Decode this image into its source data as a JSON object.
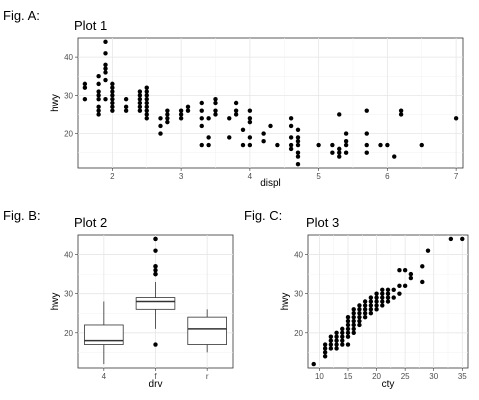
{
  "chart_data": [
    {
      "id": "A",
      "fig_label": "Fig. A:",
      "type": "scatter",
      "title": "Plot 1",
      "xlabel": "displ",
      "ylabel": "hwy",
      "xlim": [
        1.5,
        7.1
      ],
      "ylim": [
        11,
        45
      ],
      "xticks": [
        2,
        3,
        4,
        5,
        6,
        7
      ],
      "yticks": [
        20,
        30,
        40
      ],
      "grid": true,
      "points": [
        [
          1.6,
          33
        ],
        [
          1.6,
          32
        ],
        [
          1.6,
          29
        ],
        [
          1.8,
          31
        ],
        [
          1.8,
          29
        ],
        [
          1.8,
          27
        ],
        [
          1.8,
          26
        ],
        [
          1.8,
          25
        ],
        [
          1.8,
          30
        ],
        [
          1.8,
          35
        ],
        [
          1.8,
          33
        ],
        [
          1.9,
          44
        ],
        [
          1.9,
          41
        ],
        [
          1.9,
          29
        ],
        [
          1.9,
          34
        ],
        [
          1.9,
          37
        ],
        [
          1.9,
          38
        ],
        [
          1.9,
          36
        ],
        [
          2.0,
          31
        ],
        [
          2.0,
          30
        ],
        [
          2.0,
          29
        ],
        [
          2.0,
          28
        ],
        [
          2.0,
          27
        ],
        [
          2.0,
          26
        ],
        [
          2.0,
          32
        ],
        [
          2.0,
          33
        ],
        [
          2.2,
          26
        ],
        [
          2.2,
          27
        ],
        [
          2.2,
          29
        ],
        [
          2.4,
          27
        ],
        [
          2.4,
          30
        ],
        [
          2.4,
          31
        ],
        [
          2.4,
          26
        ],
        [
          2.4,
          29
        ],
        [
          2.4,
          28
        ],
        [
          2.5,
          29
        ],
        [
          2.5,
          28
        ],
        [
          2.5,
          27
        ],
        [
          2.5,
          26
        ],
        [
          2.5,
          25
        ],
        [
          2.5,
          24
        ],
        [
          2.5,
          30
        ],
        [
          2.5,
          31
        ],
        [
          2.5,
          32
        ],
        [
          2.7,
          20
        ],
        [
          2.7,
          22
        ],
        [
          2.7,
          24
        ],
        [
          2.8,
          26
        ],
        [
          2.8,
          25
        ],
        [
          2.8,
          24
        ],
        [
          2.8,
          23
        ],
        [
          3.0,
          26
        ],
        [
          3.0,
          25
        ],
        [
          3.0,
          24
        ],
        [
          3.1,
          26
        ],
        [
          3.1,
          27
        ],
        [
          3.3,
          28
        ],
        [
          3.3,
          26
        ],
        [
          3.3,
          24
        ],
        [
          3.3,
          22
        ],
        [
          3.3,
          17
        ],
        [
          3.4,
          24
        ],
        [
          3.4,
          19
        ],
        [
          3.4,
          17
        ],
        [
          3.5,
          29
        ],
        [
          3.5,
          26
        ],
        [
          3.5,
          25
        ],
        [
          3.5,
          28
        ],
        [
          3.7,
          19
        ],
        [
          3.7,
          24
        ],
        [
          3.8,
          28
        ],
        [
          3.8,
          26
        ],
        [
          3.8,
          25
        ],
        [
          3.9,
          21
        ],
        [
          3.9,
          17
        ],
        [
          4.0,
          26
        ],
        [
          4.0,
          23
        ],
        [
          4.0,
          19
        ],
        [
          4.0,
          17
        ],
        [
          4.0,
          24
        ],
        [
          4.2,
          18
        ],
        [
          4.2,
          20
        ],
        [
          4.3,
          22
        ],
        [
          4.4,
          17
        ],
        [
          4.6,
          24
        ],
        [
          4.6,
          22
        ],
        [
          4.6,
          19
        ],
        [
          4.6,
          17
        ],
        [
          4.6,
          16
        ],
        [
          4.7,
          14
        ],
        [
          4.7,
          15
        ],
        [
          4.7,
          17
        ],
        [
          4.7,
          19
        ],
        [
          4.7,
          12
        ],
        [
          4.7,
          18
        ],
        [
          4.7,
          21
        ],
        [
          5.0,
          17
        ],
        [
          5.2,
          17
        ],
        [
          5.2,
          15
        ],
        [
          5.3,
          25
        ],
        [
          5.3,
          16
        ],
        [
          5.3,
          15
        ],
        [
          5.3,
          14
        ],
        [
          5.4,
          18
        ],
        [
          5.4,
          17
        ],
        [
          5.4,
          15
        ],
        [
          5.4,
          20
        ],
        [
          5.7,
          26
        ],
        [
          5.7,
          20
        ],
        [
          5.7,
          17
        ],
        [
          5.7,
          15
        ],
        [
          5.9,
          17
        ],
        [
          6.0,
          17
        ],
        [
          6.1,
          14
        ],
        [
          6.2,
          26
        ],
        [
          6.2,
          25
        ],
        [
          6.5,
          17
        ],
        [
          7.0,
          24
        ]
      ]
    },
    {
      "id": "B",
      "fig_label": "Fig. B:",
      "type": "box",
      "title": "Plot 2",
      "xlabel": "drv",
      "ylabel": "hwy",
      "ylim": [
        11,
        45
      ],
      "yticks": [
        20,
        30,
        40
      ],
      "grid": true,
      "categories": [
        "4",
        "f",
        "r"
      ],
      "boxes": [
        {
          "category": "4",
          "min": 12,
          "q1": 17,
          "median": 18,
          "q3": 22,
          "max": 28,
          "outliers": []
        },
        {
          "category": "f",
          "min": 21,
          "q1": 26,
          "median": 28,
          "q3": 29,
          "max": 33,
          "outliers": [
            17,
            35,
            35,
            36,
            37,
            37,
            41,
            44,
            44
          ]
        },
        {
          "category": "r",
          "min": 15,
          "q1": 17,
          "median": 21,
          "q3": 24,
          "max": 26,
          "outliers": []
        }
      ]
    },
    {
      "id": "C",
      "fig_label": "Fig. C:",
      "type": "scatter",
      "title": "Plot 3",
      "xlabel": "cty",
      "ylabel": "hwy",
      "xlim": [
        8,
        36
      ],
      "ylim": [
        11,
        45
      ],
      "xticks": [
        10,
        15,
        20,
        25,
        30,
        35
      ],
      "yticks": [
        20,
        30,
        40
      ],
      "grid": true,
      "points": [
        [
          9,
          12
        ],
        [
          11,
          14
        ],
        [
          11,
          15
        ],
        [
          11,
          16
        ],
        [
          11,
          17
        ],
        [
          12,
          16
        ],
        [
          12,
          17
        ],
        [
          12,
          18
        ],
        [
          12,
          19
        ],
        [
          13,
          16
        ],
        [
          13,
          17
        ],
        [
          13,
          18
        ],
        [
          13,
          19
        ],
        [
          13,
          20
        ],
        [
          14,
          17
        ],
        [
          14,
          18
        ],
        [
          14,
          19
        ],
        [
          14,
          20
        ],
        [
          14,
          21
        ],
        [
          15,
          17
        ],
        [
          15,
          19
        ],
        [
          15,
          20
        ],
        [
          15,
          21
        ],
        [
          15,
          22
        ],
        [
          15,
          23
        ],
        [
          15,
          24
        ],
        [
          16,
          20
        ],
        [
          16,
          21
        ],
        [
          16,
          22
        ],
        [
          16,
          23
        ],
        [
          16,
          24
        ],
        [
          16,
          25
        ],
        [
          16,
          26
        ],
        [
          17,
          22
        ],
        [
          17,
          23
        ],
        [
          17,
          24
        ],
        [
          17,
          25
        ],
        [
          17,
          26
        ],
        [
          17,
          27
        ],
        [
          18,
          24
        ],
        [
          18,
          25
        ],
        [
          18,
          26
        ],
        [
          18,
          27
        ],
        [
          18,
          28
        ],
        [
          19,
          25
        ],
        [
          19,
          26
        ],
        [
          19,
          27
        ],
        [
          19,
          28
        ],
        [
          19,
          29
        ],
        [
          20,
          26
        ],
        [
          20,
          27
        ],
        [
          20,
          28
        ],
        [
          20,
          29
        ],
        [
          20,
          30
        ],
        [
          21,
          27
        ],
        [
          21,
          28
        ],
        [
          21,
          29
        ],
        [
          21,
          30
        ],
        [
          21,
          31
        ],
        [
          22,
          28
        ],
        [
          22,
          29
        ],
        [
          22,
          30
        ],
        [
          22,
          31
        ],
        [
          23,
          29
        ],
        [
          23,
          31
        ],
        [
          24,
          30
        ],
        [
          24,
          32
        ],
        [
          25,
          32
        ],
        [
          24,
          36
        ],
        [
          25,
          36
        ],
        [
          26,
          34
        ],
        [
          26,
          35
        ],
        [
          28,
          33
        ],
        [
          28,
          37
        ],
        [
          29,
          41
        ],
        [
          33,
          44
        ],
        [
          35,
          44
        ]
      ]
    }
  ]
}
